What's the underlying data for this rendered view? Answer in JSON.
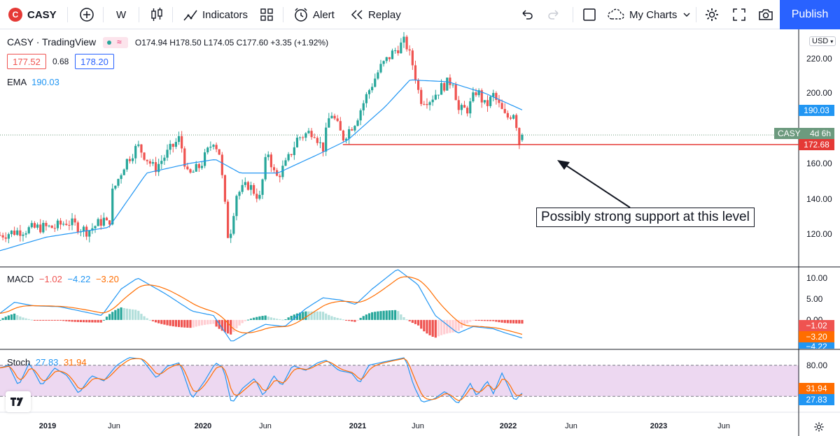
{
  "toolbar": {
    "symbol": "CASY",
    "logo_letter": "C",
    "interval": "W",
    "indicators_label": "Indicators",
    "alert_label": "Alert",
    "replay_label": "Replay",
    "my_charts_label": "My Charts",
    "publish_label": "Publish"
  },
  "legend": {
    "title": "CASY · TradingView",
    "ohlc": "O174.94 H178.50 L174.05 C177.60 +3.35 (+1.92%)",
    "bid": "177.52",
    "spread": "0.68",
    "ask": "178.20",
    "ema_label": "EMA",
    "ema_value": "190.03",
    "macd_label": "MACD",
    "macd_v1": "−1.02",
    "macd_v2": "−4.22",
    "macd_v3": "−3.20",
    "stoch_label": "Stoch",
    "stoch_v1": "27.83",
    "stoch_v2": "31.94"
  },
  "axis": {
    "currency": "USD",
    "price_ticks": [
      "220.00",
      "200.00",
      "160.00",
      "140.00",
      "120.00"
    ],
    "macd_ticks": [
      "10.00",
      "5.00",
      "0.00"
    ],
    "stoch_ticks": [
      "80.00",
      "20.00"
    ],
    "time_labels": [
      "2019",
      "Jun",
      "2020",
      "Jun",
      "2021",
      "Jun",
      "2022",
      "Jun",
      "2023",
      "Jun"
    ],
    "symbol_tag": "CASY",
    "symbol_countdown": "4d 6h",
    "ema_tag": "190.03",
    "support_tag": "172.68",
    "macd_tags": [
      "−1.02",
      "−3.20",
      "−4.22"
    ],
    "stoch_tags": [
      "31.94",
      "27.83"
    ]
  },
  "annotation": {
    "text": "Possibly strong support at this level",
    "support_level": 172.68
  },
  "colors": {
    "up": "#26a69a",
    "down": "#ef5350",
    "ema": "#2196f3",
    "macd_line": "#2196f3",
    "signal_line": "#ff6d00",
    "stoch_k": "#2196f3",
    "stoch_d": "#ff6d00",
    "support": "#e53935",
    "stoch_band": "#e1bee7",
    "accent": "#2962ff"
  },
  "chart_data": {
    "type": "candlestick",
    "interval": "weekly",
    "price_ylim": [
      110,
      232
    ],
    "macd_ylim": [
      -6.5,
      12
    ],
    "stoch_ylim": [
      0,
      100
    ],
    "x_range": [
      "2018-09-10",
      "2023-12-31"
    ],
    "support_line": {
      "value": 172.68,
      "from": "2020-12-20",
      "to": "2023-12-31"
    },
    "stoch_bands": [
      20,
      80
    ],
    "anchors": [
      {
        "date": "2018-09-10",
        "close": 126
      },
      {
        "date": "2018-10-20",
        "close": 128
      },
      {
        "date": "2018-12-15",
        "close": 130
      },
      {
        "date": "2019-01-20",
        "close": 130
      },
      {
        "date": "2019-02-20",
        "close": 133
      },
      {
        "date": "2019-04-10",
        "close": 128
      },
      {
        "date": "2019-05-20",
        "close": 134
      },
      {
        "date": "2019-06-01",
        "close": 130
      },
      {
        "date": "2019-06-10",
        "close": 148
      },
      {
        "date": "2019-07-10",
        "close": 163
      },
      {
        "date": "2019-08-10",
        "close": 172
      },
      {
        "date": "2019-09-20",
        "close": 160
      },
      {
        "date": "2019-10-20",
        "close": 168
      },
      {
        "date": "2019-11-20",
        "close": 176
      },
      {
        "date": "2019-12-10",
        "close": 156
      },
      {
        "date": "2020-01-10",
        "close": 162
      },
      {
        "date": "2020-02-10",
        "close": 175
      },
      {
        "date": "2020-02-25",
        "close": 168
      },
      {
        "date": "2020-03-18",
        "close": 122
      },
      {
        "date": "2020-04-05",
        "close": 147
      },
      {
        "date": "2020-05-05",
        "close": 152
      },
      {
        "date": "2020-06-01",
        "close": 145
      },
      {
        "date": "2020-06-20",
        "close": 170
      },
      {
        "date": "2020-07-10",
        "close": 155
      },
      {
        "date": "2020-08-05",
        "close": 163
      },
      {
        "date": "2020-09-01",
        "close": 176
      },
      {
        "date": "2020-10-10",
        "close": 180
      },
      {
        "date": "2020-11-01",
        "close": 170
      },
      {
        "date": "2020-11-20",
        "close": 190
      },
      {
        "date": "2020-12-20",
        "close": 176
      },
      {
        "date": "2021-01-20",
        "close": 185
      },
      {
        "date": "2021-02-20",
        "close": 200
      },
      {
        "date": "2021-03-20",
        "close": 212
      },
      {
        "date": "2021-04-20",
        "close": 220
      },
      {
        "date": "2021-05-20",
        "close": 226
      },
      {
        "date": "2021-06-10",
        "close": 212
      },
      {
        "date": "2021-06-25",
        "close": 196
      },
      {
        "date": "2021-07-20",
        "close": 196
      },
      {
        "date": "2021-08-20",
        "close": 203
      },
      {
        "date": "2021-09-15",
        "close": 206
      },
      {
        "date": "2021-09-25",
        "close": 190
      },
      {
        "date": "2021-10-20",
        "close": 191
      },
      {
        "date": "2021-11-10",
        "close": 201
      },
      {
        "date": "2021-12-01",
        "close": 192
      },
      {
        "date": "2021-12-20",
        "close": 198
      },
      {
        "date": "2022-01-20",
        "close": 186
      },
      {
        "date": "2022-02-10",
        "close": 190
      },
      {
        "date": "2022-02-20",
        "close": 173
      },
      {
        "date": "2022-03-05",
        "close": 177.6
      }
    ],
    "ema": [
      {
        "date": "2018-09-10",
        "value": 118
      },
      {
        "date": "2019-01-01",
        "value": 125
      },
      {
        "date": "2019-06-01",
        "value": 130
      },
      {
        "date": "2019-09-01",
        "value": 158
      },
      {
        "date": "2019-12-15",
        "value": 163
      },
      {
        "date": "2020-02-15",
        "value": 165
      },
      {
        "date": "2020-04-15",
        "value": 158
      },
      {
        "date": "2020-07-15",
        "value": 158
      },
      {
        "date": "2020-10-15",
        "value": 167
      },
      {
        "date": "2021-01-01",
        "value": 175
      },
      {
        "date": "2021-04-01",
        "value": 192
      },
      {
        "date": "2021-06-01",
        "value": 206
      },
      {
        "date": "2021-09-01",
        "value": 205
      },
      {
        "date": "2021-12-01",
        "value": 199
      },
      {
        "date": "2022-03-05",
        "value": 190.03
      }
    ],
    "macd": [
      {
        "date": "2018-09-10",
        "value": 1.5
      },
      {
        "date": "2018-10-15",
        "value": 4.0
      },
      {
        "date": "2018-12-01",
        "value": 3.2
      },
      {
        "date": "2019-02-01",
        "value": 3.0
      },
      {
        "date": "2019-05-15",
        "value": 1.0
      },
      {
        "date": "2019-07-01",
        "value": 7.0
      },
      {
        "date": "2019-08-10",
        "value": 9.5
      },
      {
        "date": "2019-10-15",
        "value": 6.0
      },
      {
        "date": "2019-12-20",
        "value": 2.0
      },
      {
        "date": "2020-02-10",
        "value": 1.0
      },
      {
        "date": "2020-03-25",
        "value": -5.0
      },
      {
        "date": "2020-05-01",
        "value": -3.0
      },
      {
        "date": "2020-06-15",
        "value": -1.0
      },
      {
        "date": "2020-08-01",
        "value": -1.5
      },
      {
        "date": "2020-09-20",
        "value": 2.5
      },
      {
        "date": "2020-11-01",
        "value": 5.0
      },
      {
        "date": "2020-12-15",
        "value": 4.5
      },
      {
        "date": "2021-01-20",
        "value": 3.5
      },
      {
        "date": "2021-03-01",
        "value": 7.0
      },
      {
        "date": "2021-05-01",
        "value": 11.5
      },
      {
        "date": "2021-06-20",
        "value": 8.0
      },
      {
        "date": "2021-08-01",
        "value": 1.0
      },
      {
        "date": "2021-09-25",
        "value": -3.0
      },
      {
        "date": "2021-11-01",
        "value": -1.5
      },
      {
        "date": "2021-12-20",
        "value": -2.0
      },
      {
        "date": "2022-01-20",
        "value": -3.0
      },
      {
        "date": "2022-03-05",
        "value": -4.22
      }
    ],
    "stoch": [
      {
        "date": "2018-09-10",
        "value": 75
      },
      {
        "date": "2018-10-01",
        "value": 80
      },
      {
        "date": "2018-10-25",
        "value": 40
      },
      {
        "date": "2018-11-20",
        "value": 85
      },
      {
        "date": "2018-12-20",
        "value": 40
      },
      {
        "date": "2019-01-20",
        "value": 75
      },
      {
        "date": "2019-02-20",
        "value": 60
      },
      {
        "date": "2019-03-20",
        "value": 25
      },
      {
        "date": "2019-04-20",
        "value": 60
      },
      {
        "date": "2019-05-20",
        "value": 50
      },
      {
        "date": "2019-06-20",
        "value": 80
      },
      {
        "date": "2019-07-20",
        "value": 95
      },
      {
        "date": "2019-08-20",
        "value": 92
      },
      {
        "date": "2019-09-25",
        "value": 55
      },
      {
        "date": "2019-10-20",
        "value": 78
      },
      {
        "date": "2019-11-20",
        "value": 85
      },
      {
        "date": "2019-12-20",
        "value": 15
      },
      {
        "date": "2020-01-20",
        "value": 50
      },
      {
        "date": "2020-02-15",
        "value": 85
      },
      {
        "date": "2020-03-05",
        "value": 75
      },
      {
        "date": "2020-03-25",
        "value": 5
      },
      {
        "date": "2020-04-20",
        "value": 35
      },
      {
        "date": "2020-05-20",
        "value": 55
      },
      {
        "date": "2020-06-10",
        "value": 20
      },
      {
        "date": "2020-07-05",
        "value": 60
      },
      {
        "date": "2020-07-25",
        "value": 40
      },
      {
        "date": "2020-08-20",
        "value": 80
      },
      {
        "date": "2020-09-20",
        "value": 70
      },
      {
        "date": "2020-10-20",
        "value": 85
      },
      {
        "date": "2020-11-10",
        "value": 90
      },
      {
        "date": "2020-12-10",
        "value": 70
      },
      {
        "date": "2021-01-10",
        "value": 65
      },
      {
        "date": "2021-01-30",
        "value": 45
      },
      {
        "date": "2021-02-20",
        "value": 80
      },
      {
        "date": "2021-03-20",
        "value": 85
      },
      {
        "date": "2021-04-20",
        "value": 90
      },
      {
        "date": "2021-05-20",
        "value": 95
      },
      {
        "date": "2021-06-10",
        "value": 40
      },
      {
        "date": "2021-06-30",
        "value": 8
      },
      {
        "date": "2021-07-30",
        "value": 15
      },
      {
        "date": "2021-08-25",
        "value": 30
      },
      {
        "date": "2021-09-25",
        "value": 5
      },
      {
        "date": "2021-10-25",
        "value": 45
      },
      {
        "date": "2021-11-10",
        "value": 20
      },
      {
        "date": "2021-12-05",
        "value": 50
      },
      {
        "date": "2021-12-20",
        "value": 25
      },
      {
        "date": "2022-01-10",
        "value": 65
      },
      {
        "date": "2022-01-25",
        "value": 40
      },
      {
        "date": "2022-02-10",
        "value": 10
      },
      {
        "date": "2022-02-25",
        "value": 25
      },
      {
        "date": "2022-03-05",
        "value": 27.83
      }
    ]
  }
}
